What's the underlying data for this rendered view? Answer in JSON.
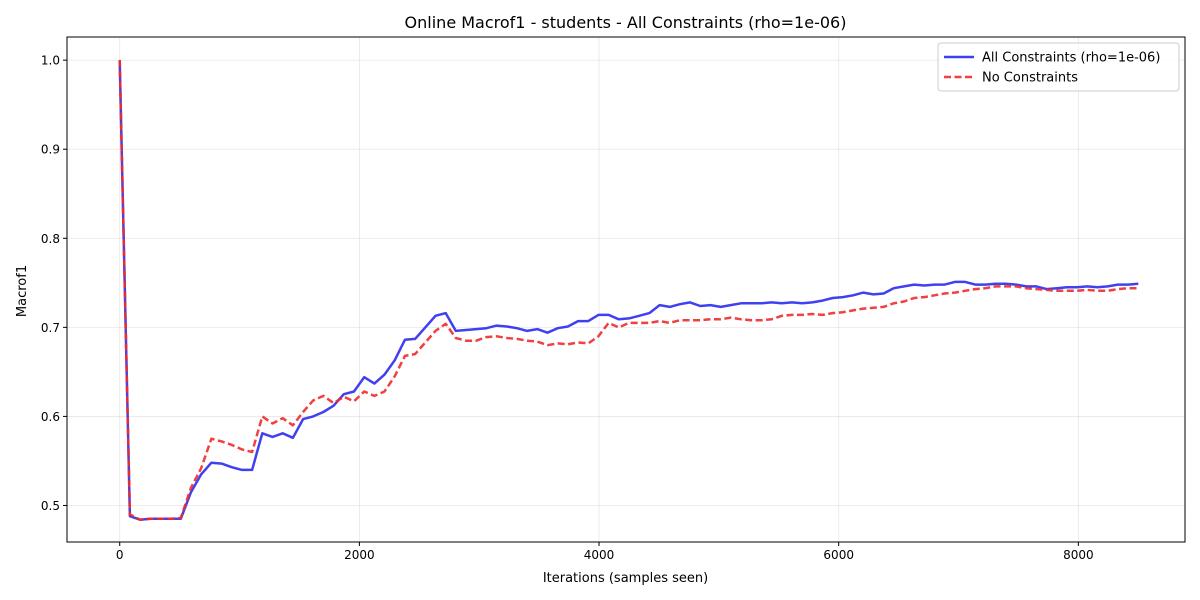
{
  "chart_data": {
    "type": "line",
    "title": "Online Macrof1 - students - All Constraints (rho=1e-06)",
    "xlabel": "Iterations (samples seen)",
    "ylabel": "Macrof1",
    "xlim": [
      -440,
      8890
    ],
    "ylim": [
      0.459,
      1.026
    ],
    "xticks": [
      0,
      2000,
      4000,
      6000,
      8000
    ],
    "yticks": [
      0.5,
      0.6,
      0.7,
      0.8,
      0.9,
      1.0
    ],
    "xtick_labels": [
      "0",
      "2000",
      "4000",
      "6000",
      "8000"
    ],
    "ytick_labels": [
      "0.5",
      "0.6",
      "0.7",
      "0.8",
      "0.9",
      "1.0"
    ],
    "grid": true,
    "legend_position": "top-right",
    "x": [
      0,
      85,
      170,
      255,
      340,
      425,
      510,
      595,
      680,
      765,
      850,
      935,
      1020,
      1105,
      1190,
      1275,
      1360,
      1445,
      1530,
      1615,
      1700,
      1785,
      1870,
      1955,
      2040,
      2125,
      2210,
      2295,
      2380,
      2465,
      2550,
      2635,
      2720,
      2805,
      2890,
      2975,
      3060,
      3145,
      3230,
      3315,
      3400,
      3485,
      3570,
      3655,
      3740,
      3825,
      3910,
      3995,
      4080,
      4165,
      4250,
      4335,
      4420,
      4505,
      4590,
      4675,
      4760,
      4845,
      4930,
      5015,
      5100,
      5185,
      5270,
      5355,
      5440,
      5525,
      5610,
      5695,
      5780,
      5865,
      5950,
      6035,
      6120,
      6205,
      6290,
      6375,
      6460,
      6545,
      6630,
      6715,
      6800,
      6885,
      6970,
      7055,
      7140,
      7225,
      7310,
      7395,
      7480,
      7565,
      7650,
      7735,
      7820,
      7905,
      7990,
      8075,
      8160,
      8245,
      8330,
      8415,
      8500
    ],
    "series": [
      {
        "name": "All Constraints (rho=1e-06)",
        "color": "#2b2bee",
        "dash": "solid",
        "values": [
          1.0,
          0.488,
          0.484,
          0.485,
          0.485,
          0.485,
          0.485,
          0.515,
          0.535,
          0.548,
          0.547,
          0.543,
          0.54,
          0.54,
          0.581,
          0.577,
          0.581,
          0.576,
          0.597,
          0.6,
          0.605,
          0.612,
          0.625,
          0.628,
          0.644,
          0.637,
          0.647,
          0.663,
          0.686,
          0.687,
          0.7,
          0.713,
          0.716,
          0.696,
          0.697,
          0.698,
          0.699,
          0.702,
          0.701,
          0.699,
          0.696,
          0.698,
          0.694,
          0.699,
          0.701,
          0.707,
          0.707,
          0.714,
          0.714,
          0.709,
          0.71,
          0.713,
          0.716,
          0.725,
          0.723,
          0.726,
          0.728,
          0.724,
          0.725,
          0.723,
          0.725,
          0.727,
          0.727,
          0.727,
          0.728,
          0.727,
          0.728,
          0.727,
          0.728,
          0.73,
          0.733,
          0.734,
          0.736,
          0.739,
          0.737,
          0.738,
          0.744,
          0.746,
          0.748,
          0.747,
          0.748,
          0.748,
          0.751,
          0.751,
          0.748,
          0.748,
          0.749,
          0.749,
          0.748,
          0.746,
          0.746,
          0.743,
          0.744,
          0.745,
          0.745,
          0.746,
          0.745,
          0.746,
          0.748,
          0.748,
          0.749
        ]
      },
      {
        "name": "No Constraints",
        "color": "#ee2b2b",
        "dash": "dashed",
        "values": [
          1.0,
          0.49,
          0.484,
          0.485,
          0.485,
          0.485,
          0.486,
          0.52,
          0.542,
          0.575,
          0.572,
          0.568,
          0.563,
          0.56,
          0.6,
          0.592,
          0.598,
          0.59,
          0.605,
          0.618,
          0.623,
          0.615,
          0.622,
          0.617,
          0.628,
          0.623,
          0.628,
          0.645,
          0.668,
          0.67,
          0.683,
          0.696,
          0.704,
          0.688,
          0.685,
          0.685,
          0.689,
          0.69,
          0.688,
          0.687,
          0.685,
          0.684,
          0.68,
          0.682,
          0.681,
          0.683,
          0.682,
          0.69,
          0.705,
          0.7,
          0.705,
          0.705,
          0.705,
          0.707,
          0.705,
          0.708,
          0.708,
          0.708,
          0.709,
          0.709,
          0.711,
          0.709,
          0.708,
          0.708,
          0.709,
          0.713,
          0.714,
          0.714,
          0.715,
          0.714,
          0.716,
          0.717,
          0.719,
          0.721,
          0.722,
          0.723,
          0.727,
          0.729,
          0.733,
          0.734,
          0.736,
          0.738,
          0.739,
          0.741,
          0.743,
          0.744,
          0.746,
          0.746,
          0.746,
          0.744,
          0.743,
          0.742,
          0.741,
          0.741,
          0.741,
          0.742,
          0.741,
          0.741,
          0.743,
          0.744,
          0.744
        ]
      }
    ]
  }
}
